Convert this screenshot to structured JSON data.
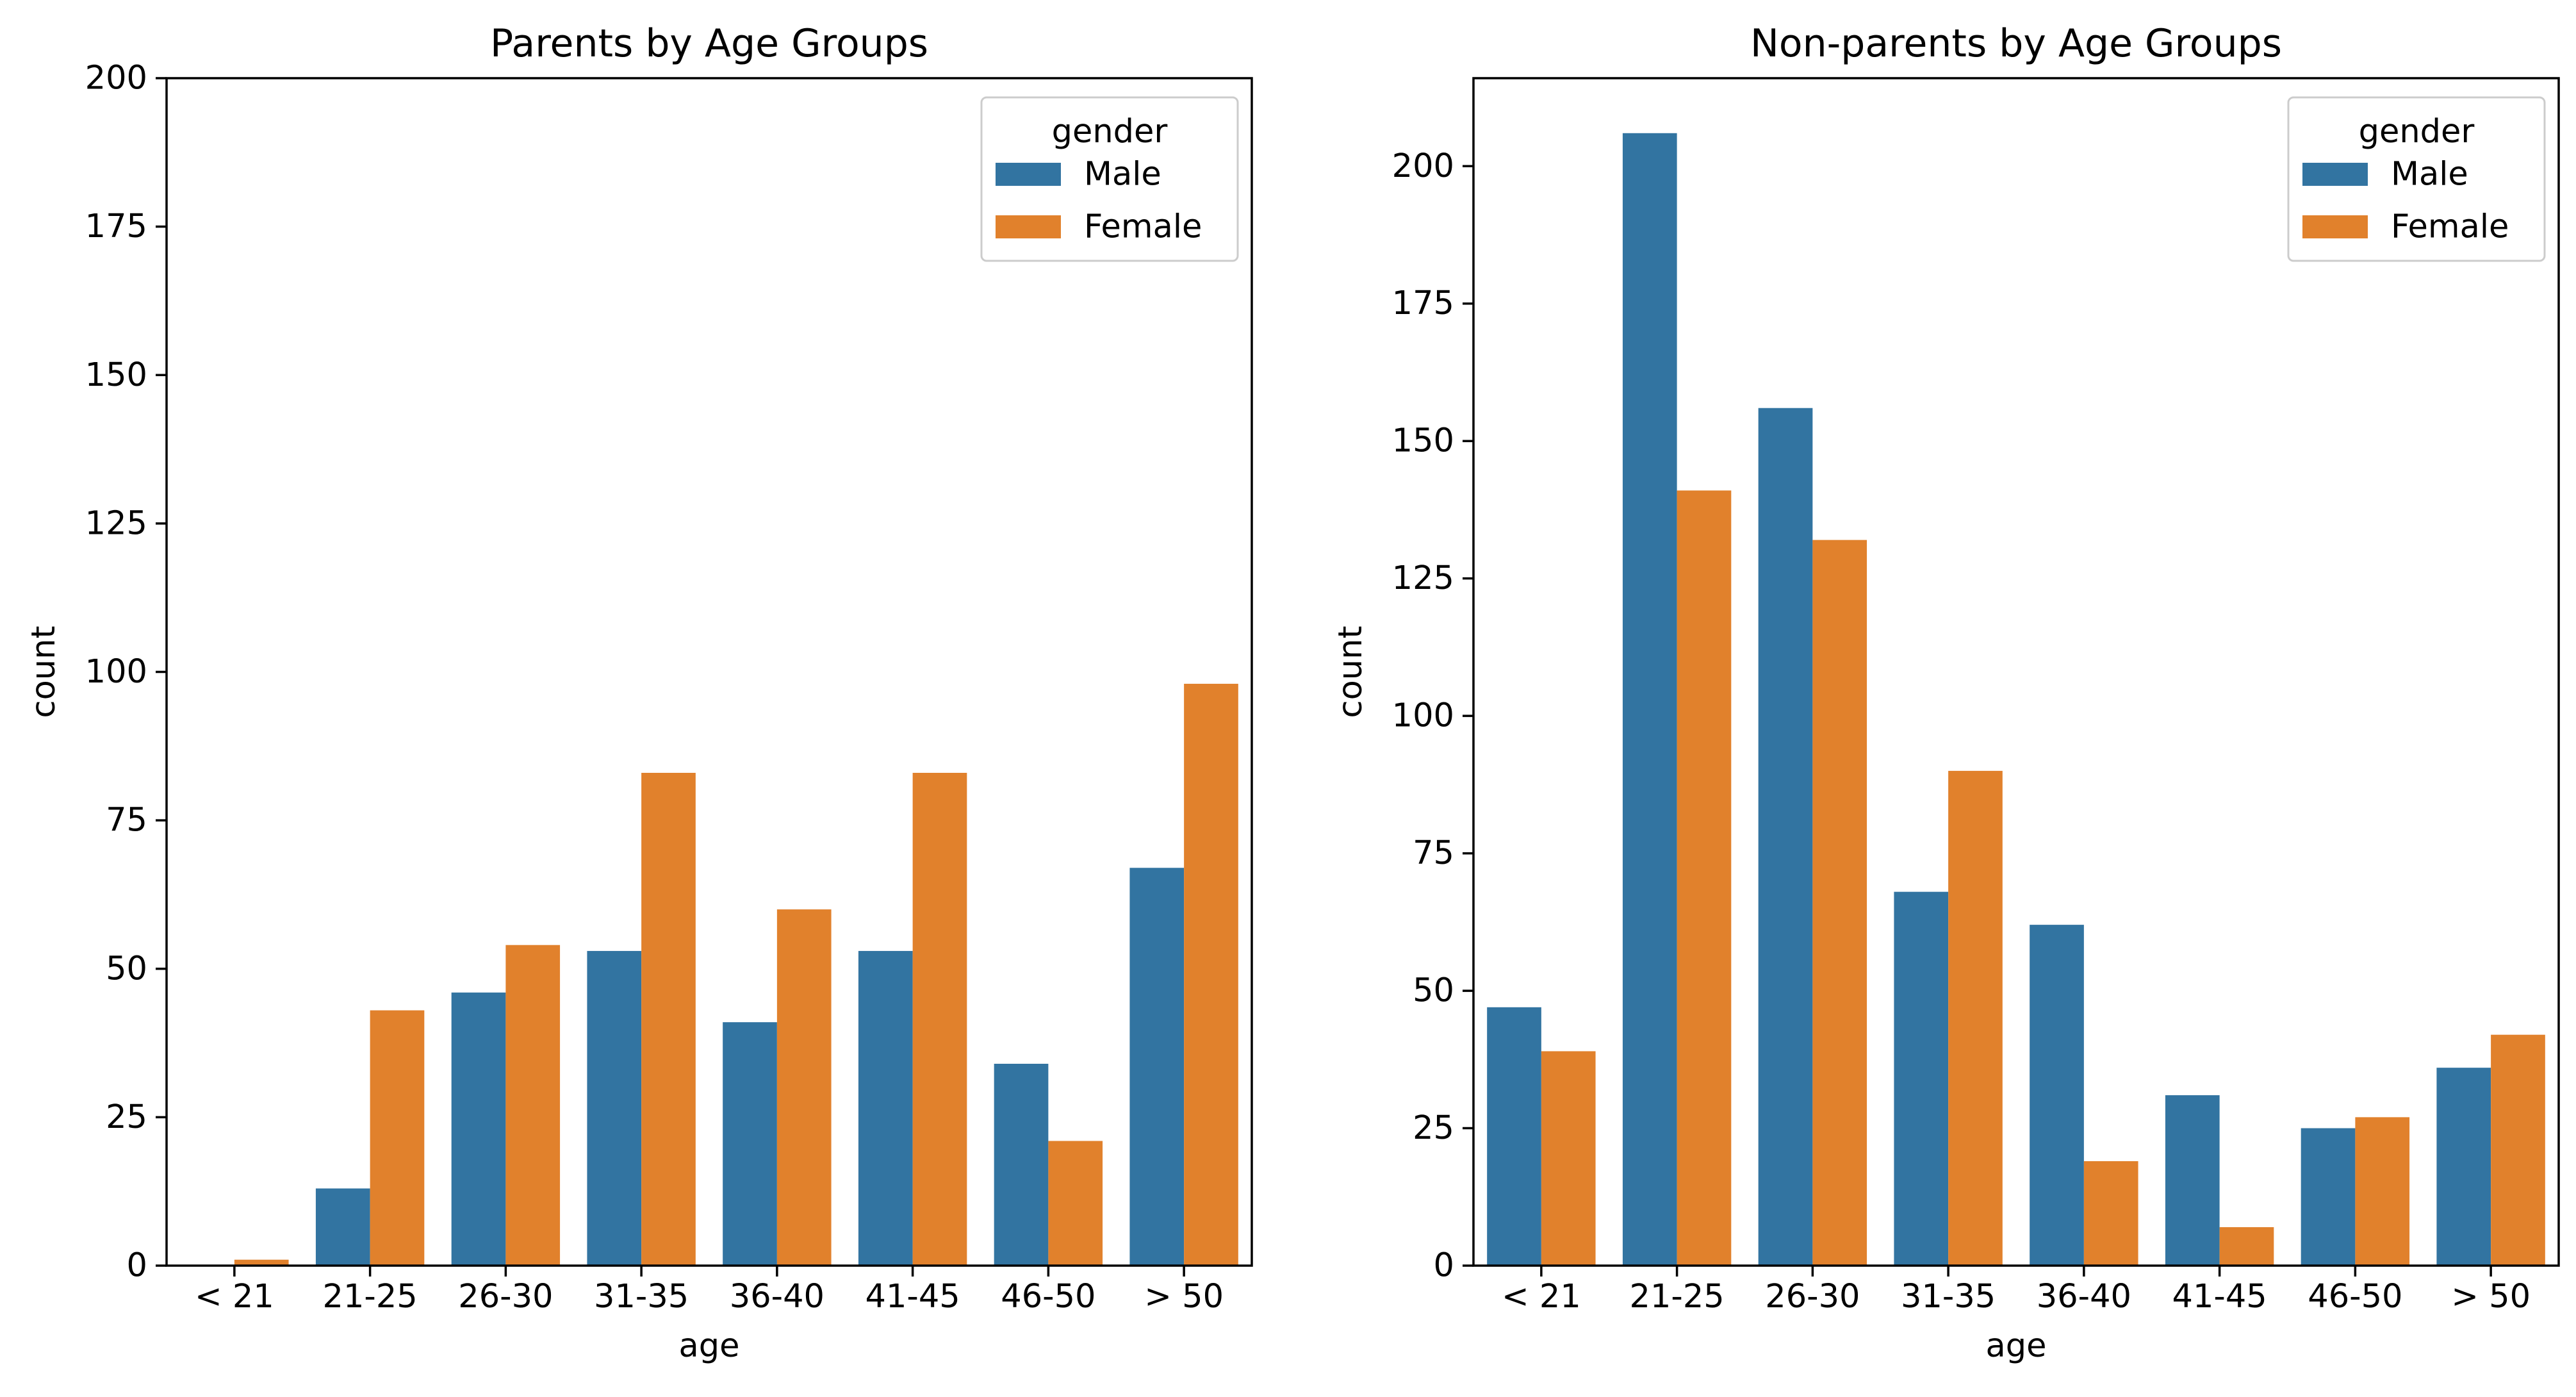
{
  "chart_data": [
    {
      "type": "bar",
      "title": "Parents by Age Groups",
      "xlabel": "age",
      "ylabel": "count",
      "ylim": [
        0,
        200
      ],
      "yticks": [
        0,
        25,
        50,
        75,
        100,
        125,
        150,
        175,
        200
      ],
      "categories": [
        "< 21",
        "21-25",
        "26-30",
        "31-35",
        "36-40",
        "41-45",
        "46-50",
        "> 50"
      ],
      "legend": {
        "title": "gender",
        "position": "top-right"
      },
      "series": [
        {
          "name": "Male",
          "color": "#3274a1",
          "values": [
            0,
            13,
            46,
            53,
            41,
            53,
            34,
            67
          ]
        },
        {
          "name": "Female",
          "color": "#e1812c",
          "values": [
            1,
            43,
            54,
            83,
            60,
            83,
            21,
            98
          ]
        }
      ]
    },
    {
      "type": "bar",
      "title": "Non-parents by Age Groups",
      "xlabel": "age",
      "ylabel": "count",
      "ylim": [
        0,
        216
      ],
      "yticks": [
        0,
        25,
        50,
        75,
        100,
        125,
        150,
        175,
        200
      ],
      "categories": [
        "< 21",
        "21-25",
        "26-30",
        "31-35",
        "36-40",
        "41-45",
        "46-50",
        "> 50"
      ],
      "legend": {
        "title": "gender",
        "position": "top-right"
      },
      "series": [
        {
          "name": "Male",
          "color": "#3274a1",
          "values": [
            47,
            206,
            156,
            68,
            62,
            31,
            25,
            36
          ]
        },
        {
          "name": "Female",
          "color": "#e1812c",
          "values": [
            39,
            141,
            132,
            90,
            19,
            7,
            27,
            42
          ]
        }
      ]
    }
  ]
}
